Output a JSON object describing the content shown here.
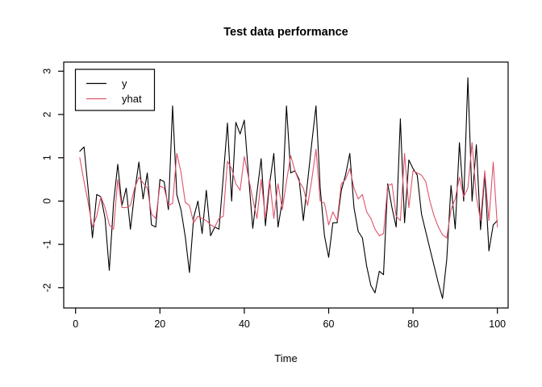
{
  "title": "Test data performance",
  "xlabel": "Time",
  "colors": {
    "background": "#FFFFFF",
    "axis": "#000000",
    "y": "#000000",
    "yhat": "#DF536B"
  },
  "legend": {
    "items": [
      {
        "label": "y",
        "color": "#000000"
      },
      {
        "label": "yhat",
        "color": "#DF536B"
      }
    ]
  },
  "chart_data": {
    "type": "line",
    "title": "Test data performance",
    "xlabel": "Time",
    "ylabel": "",
    "x_start": 1,
    "x_step": 1,
    "n_points": 100,
    "x_ticks": [
      0,
      20,
      40,
      60,
      80,
      100
    ],
    "y_ticks": [
      3,
      2,
      1,
      0,
      -1,
      -2
    ],
    "xlim": [
      -2.8,
      102.6
    ],
    "ylim": [
      -2.47,
      3.21
    ],
    "grid": false,
    "legend_position": "topleft",
    "series": [
      {
        "name": "y",
        "color": "#000000",
        "values": [
          1.15,
          1.25,
          0.25,
          -0.85,
          0.15,
          0.1,
          -0.4,
          -1.6,
          -0.05,
          0.85,
          -0.1,
          0.3,
          -0.65,
          0.2,
          0.9,
          0.05,
          0.65,
          -0.55,
          -0.6,
          0.5,
          0.45,
          -0.2,
          2.2,
          0.15,
          -0.2,
          -0.82,
          -1.65,
          -0.38,
          0.0,
          -0.75,
          0.25,
          -0.8,
          -0.6,
          -0.65,
          0.55,
          1.8,
          0.0,
          1.82,
          1.55,
          1.87,
          0.6,
          -0.63,
          0.2,
          0.98,
          -0.57,
          0.4,
          1.1,
          -0.6,
          0.0,
          2.2,
          0.65,
          0.7,
          0.5,
          -0.45,
          0.45,
          1.35,
          2.2,
          0.3,
          -0.8,
          -1.3,
          -0.5,
          -0.5,
          0.25,
          0.6,
          1.1,
          -0.15,
          -0.7,
          -0.85,
          -1.5,
          -1.95,
          -2.12,
          -1.62,
          -1.7,
          0.4,
          -0.15,
          -0.6,
          1.9,
          -0.5,
          0.95,
          0.75,
          0.6,
          -0.3,
          -0.7,
          -1.1,
          -1.5,
          -1.9,
          -2.25,
          -1.35,
          0.36,
          -0.64,
          1.35,
          0.0,
          2.85,
          0.0,
          1.3,
          -0.66,
          0.62,
          -1.15,
          -0.55,
          -0.45
        ]
      },
      {
        "name": "yhat",
        "color": "#DF536B",
        "values": [
          1.0,
          0.45,
          -0.05,
          -0.6,
          -0.35,
          0.1,
          -0.15,
          -0.55,
          -0.65,
          0.5,
          -0.15,
          -0.15,
          -0.1,
          0.3,
          0.55,
          0.42,
          0.3,
          -0.3,
          -0.4,
          0.35,
          0.3,
          -0.1,
          -0.05,
          1.1,
          0.67,
          -0.03,
          -0.1,
          -0.5,
          -0.35,
          -0.4,
          -0.45,
          -0.55,
          -0.6,
          -0.4,
          -0.35,
          0.92,
          0.75,
          0.4,
          0.25,
          1.03,
          0.55,
          0.05,
          -0.4,
          0.5,
          -0.4,
          0.5,
          -0.4,
          0.4,
          -0.2,
          0.45,
          1.05,
          0.7,
          0.45,
          0.3,
          -0.1,
          0.5,
          1.2,
          0.0,
          -0.05,
          -0.55,
          -0.25,
          -0.45,
          0.4,
          0.5,
          0.75,
          0.3,
          0.05,
          0.15,
          -0.25,
          -0.4,
          -0.65,
          -0.8,
          -0.75,
          0.35,
          0.4,
          -0.35,
          -0.45,
          1.1,
          -0.15,
          0.7,
          0.65,
          0.6,
          0.45,
          0.0,
          -0.35,
          -0.6,
          -0.78,
          -0.85,
          -0.2,
          0.05,
          0.55,
          0.1,
          0.3,
          1.35,
          0.1,
          -0.45,
          0.7,
          -0.45,
          0.9,
          -0.6
        ]
      }
    ]
  }
}
